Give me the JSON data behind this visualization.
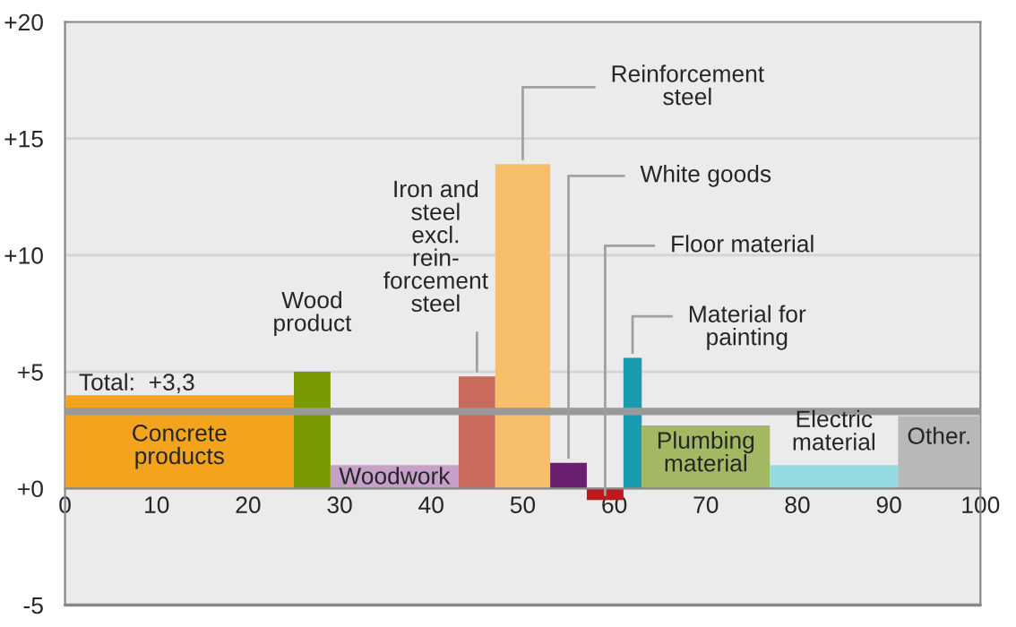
{
  "chart_data": {
    "type": "histogram",
    "bins": [
      0,
      25,
      29,
      43,
      47,
      53,
      57,
      61,
      63,
      77,
      91,
      100
    ],
    "values": [
      4.0,
      5.0,
      1.0,
      4.8,
      13.9,
      1.1,
      -0.5,
      5.6,
      2.7,
      1.0,
      3.1
    ],
    "colors": [
      "#f4a41c",
      "#7a9a01",
      "#c6a0c8",
      "#c96a5a",
      "#f8bf6a",
      "#6b1f6f",
      "#c0161d",
      "#1a9cb0",
      "#a3b862",
      "#93dbe0",
      "#b8b8b8"
    ],
    "annotations": [
      {
        "text": "Concrete\nproducts",
        "x": 12.5,
        "y": 4.0
      },
      {
        "text": "Wood\nproduct",
        "x": 27,
        "y": 5.0
      },
      {
        "text": "Woodwork",
        "x": 36,
        "y": 1.0
      },
      {
        "text": "Iron and\nsteel\nexcl.\nrein-\nforcement\nsteel",
        "x": 45,
        "y": 4.8
      },
      {
        "text": "Reinforcement\nsteel",
        "x": 50,
        "y": 13.9
      },
      {
        "text": "White goods",
        "x": 55,
        "y": 1.1
      },
      {
        "text": "Floor material",
        "x": 59,
        "y": -0.5
      },
      {
        "text": "Material for\npainting",
        "x": 62,
        "y": 5.6
      },
      {
        "text": "Plumbing\nmaterial",
        "x": 70,
        "y": 2.7
      },
      {
        "text": "Electric\nmaterial",
        "x": 84,
        "y": 1.0
      },
      {
        "text": "Other.",
        "x": 95.5,
        "y": 3.1
      }
    ],
    "ref_lines": [
      {
        "axis": "y",
        "value": 3.3,
        "label": "Total:  +3,3",
        "color": "#999999"
      }
    ],
    "xlim": [
      0,
      100
    ],
    "xticks": [
      0,
      10,
      20,
      30,
      40,
      50,
      60,
      70,
      80,
      90,
      100
    ],
    "ylim": [
      -5,
      20
    ],
    "yticks": [
      {
        "value": -5,
        "label": "-5"
      },
      {
        "value": 0,
        "label": "+0"
      },
      {
        "value": 5,
        "label": "+5"
      },
      {
        "value": 10,
        "label": "+10"
      },
      {
        "value": 15,
        "label": "+15"
      },
      {
        "value": 20,
        "label": "+20"
      }
    ],
    "grid": "y"
  }
}
